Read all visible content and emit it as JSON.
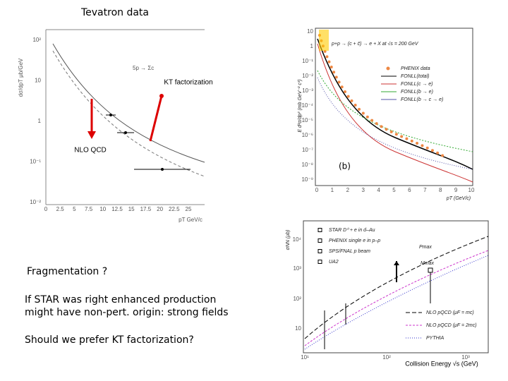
{
  "header": {
    "title": "Tevatron data"
  },
  "annotations": {
    "kt": "KT factorization",
    "nlo": "NLO QCD"
  },
  "plots": [
    {
      "process": "5p → Σc",
      "y_label": "dσ/dpT μb/GeV",
      "x_label": "pT GeV/c",
      "xticks": [
        0,
        2.5,
        5,
        7.5,
        10,
        12.5,
        15,
        17.5,
        20,
        22.5,
        25
      ],
      "yticks": [
        "10²",
        "10",
        "1",
        "10⁻¹",
        "10⁻²"
      ]
    },
    {
      "process": "p+p → (c + c̄) → e + X at √s = 200 GeV",
      "y_label": "E d³σ/dp³ (mb GeV⁻² c³)",
      "x_label": "pT (GeV/c)",
      "panel": "(b)",
      "legend": [
        "PHENIX data",
        "FONLL(total)",
        "FONLL(c → e)",
        "FONLL(b → e)",
        "FONLL(b → c → e)"
      ],
      "xticks": [
        0,
        1,
        2,
        3,
        4,
        5,
        6,
        7,
        8,
        9,
        10
      ],
      "yticks": [
        "10",
        "1",
        "10⁻¹",
        "10⁻²",
        "10⁻³",
        "10⁻⁴",
        "10⁻⁵",
        "10⁻⁶",
        "10⁻⁷",
        "10⁻⁸",
        "10⁻⁹"
      ]
    },
    {
      "y_label": "σNN (μb)",
      "x_label": "Collision Energy √s (GeV)",
      "legend": [
        "STAR D⁰ + e in d–Au",
        "PHENIX single e in p–p",
        "SPS/FNAL p beam",
        "UA2"
      ],
      "legend2": [
        "NLO pQCD (μF = mc)",
        "NLO pQCD (μF = 2mc)",
        "PYTHIA"
      ],
      "markers": [
        "Pmax",
        "Mmax"
      ],
      "xticks": [
        "10¹",
        "10²",
        "10³"
      ],
      "yticks": [
        "10⁴",
        "10³",
        "10²",
        "10"
      ]
    }
  ],
  "notes": [
    "Fragmentation ?",
    "If STAR was right enhanced production",
    "might have non-pert. origin: strong fields",
    "Should we prefer KT factorization?"
  ]
}
